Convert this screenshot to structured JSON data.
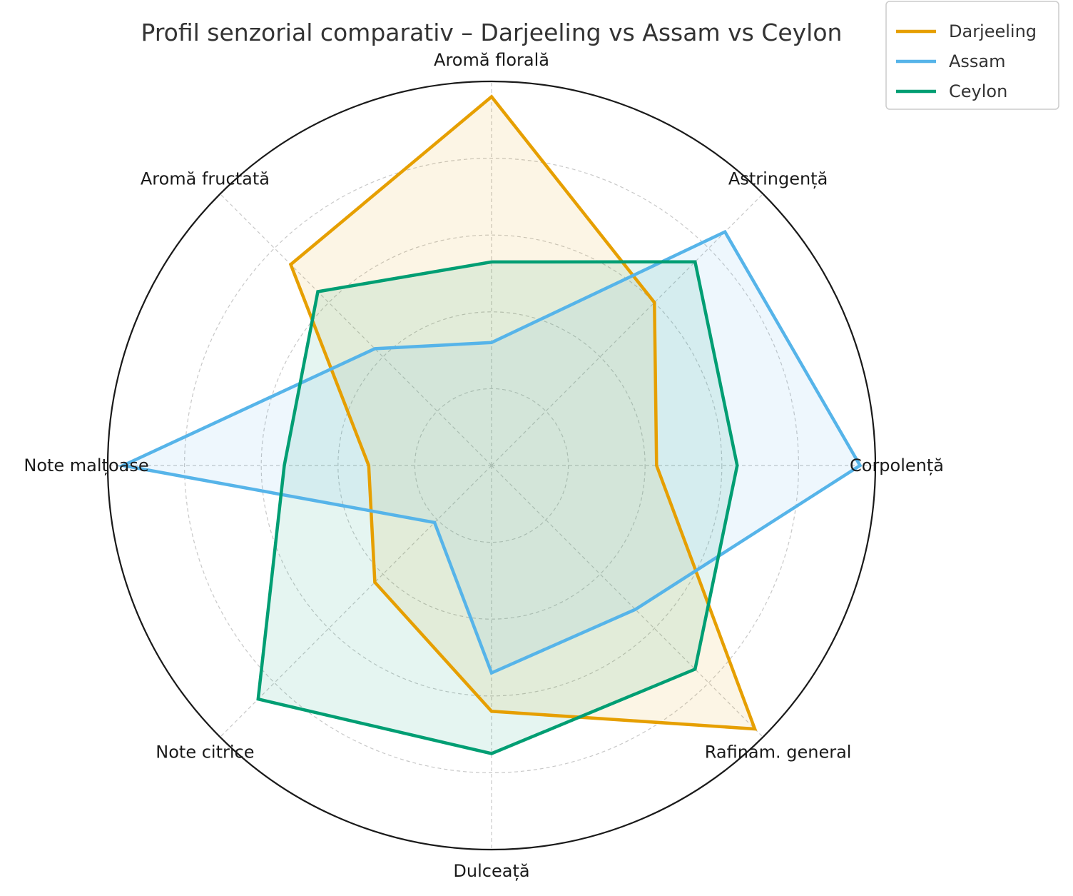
{
  "chart_data": {
    "type": "radar",
    "title": "Profil senzorial comparativ – Darjeeling vs Assam vs Ceylon",
    "axes": [
      "Corpolență",
      "Astringență",
      "Aromă florală",
      "Aromă fructată",
      "Note malțoase",
      "Note citrice",
      "Dulceață",
      "Rafinam. general"
    ],
    "rlim": [
      0,
      10
    ],
    "grid": true,
    "legend_position": "top-right",
    "series": [
      {
        "name": "Darjeeling",
        "color": "#E69F00",
        "values": [
          4.3,
          6.0,
          9.6,
          7.4,
          3.2,
          4.3,
          6.4,
          9.7
        ]
      },
      {
        "name": "Assam",
        "color": "#56B4E9",
        "values": [
          9.6,
          8.6,
          3.2,
          4.3,
          9.6,
          2.1,
          5.4,
          5.3
        ]
      },
      {
        "name": "Ceylon",
        "color": "#009E73",
        "values": [
          6.4,
          7.5,
          5.3,
          6.4,
          5.4,
          8.6,
          7.5,
          7.5
        ]
      }
    ]
  }
}
